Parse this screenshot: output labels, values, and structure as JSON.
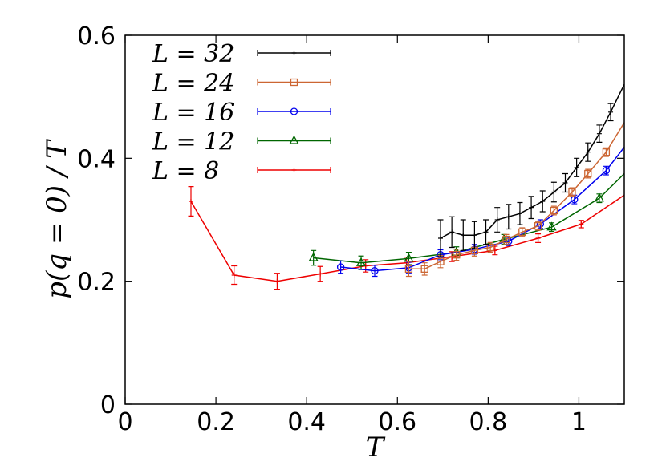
{
  "chart_data": {
    "type": "line",
    "xlabel": "T",
    "ylabel": "p(q = 0) / T",
    "xlim": [
      0,
      1.1
    ],
    "ylim": [
      0,
      0.6
    ],
    "xticks": [
      0,
      0.2,
      0.4,
      0.6,
      0.8,
      1
    ],
    "xtick_labels": [
      "0",
      "0.2",
      "0.4",
      "0.6",
      "0.8",
      "1"
    ],
    "yticks": [
      0,
      0.2,
      0.4,
      0.6
    ],
    "ytick_labels": [
      "0",
      "0.2",
      "0.4",
      "0.6"
    ],
    "legend_position": "top-left",
    "series": [
      {
        "name": "L = 32",
        "color": "#000000",
        "marker": "plus",
        "x": [
          0.695,
          0.72,
          0.745,
          0.77,
          0.795,
          0.82,
          0.845,
          0.87,
          0.895,
          0.92,
          0.945,
          0.97,
          0.995,
          1.02,
          1.045,
          1.07,
          1.1
        ],
        "y": [
          0.27,
          0.28,
          0.275,
          0.275,
          0.28,
          0.3,
          0.305,
          0.31,
          0.32,
          0.33,
          0.345,
          0.36,
          0.385,
          0.41,
          0.44,
          0.475,
          0.52
        ],
        "err": [
          0.03,
          0.025,
          0.025,
          0.022,
          0.02,
          0.02,
          0.02,
          0.018,
          0.018,
          0.017,
          0.016,
          0.015,
          0.015,
          0.015,
          0.014,
          0.014,
          0.014
        ]
      },
      {
        "name": "L = 24",
        "color": "#cc6633",
        "marker": "square",
        "x": [
          0.625,
          0.66,
          0.695,
          0.73,
          0.77,
          0.805,
          0.84,
          0.875,
          0.91,
          0.945,
          0.985,
          1.02,
          1.06,
          1.1
        ],
        "y": [
          0.22,
          0.22,
          0.232,
          0.243,
          0.25,
          0.255,
          0.268,
          0.28,
          0.29,
          0.315,
          0.345,
          0.375,
          0.41,
          0.458
        ],
        "err": [
          0.012,
          0.01,
          0.01,
          0.009,
          0.009,
          0.008,
          0.008,
          0.007,
          0.007,
          0.007,
          0.007,
          0.007,
          0.007,
          0.007
        ]
      },
      {
        "name": "L = 16",
        "color": "#0000ee",
        "marker": "circle",
        "x": [
          0.475,
          0.55,
          0.625,
          0.695,
          0.77,
          0.845,
          0.915,
          0.99,
          1.06,
          1.1
        ],
        "y": [
          0.223,
          0.217,
          0.222,
          0.243,
          0.252,
          0.265,
          0.293,
          0.333,
          0.38,
          0.418
        ],
        "err": [
          0.01,
          0.009,
          0.009,
          0.008,
          0.008,
          0.007,
          0.007,
          0.007,
          0.007,
          0.007
        ]
      },
      {
        "name": "L = 12",
        "color": "#006600",
        "marker": "triangle",
        "x": [
          0.415,
          0.52,
          0.625,
          0.73,
          0.835,
          0.94,
          1.045,
          1.1
        ],
        "y": [
          0.238,
          0.23,
          0.237,
          0.247,
          0.268,
          0.288,
          0.335,
          0.375
        ],
        "err": [
          0.012,
          0.011,
          0.01,
          0.009,
          0.008,
          0.007,
          0.007,
          0.007
        ]
      },
      {
        "name": "L = 8",
        "color": "#ee0000",
        "marker": "plus",
        "x": [
          0.145,
          0.24,
          0.335,
          0.43,
          0.53,
          0.62,
          0.72,
          0.815,
          0.91,
          1.005,
          1.1
        ],
        "y": [
          0.33,
          0.21,
          0.2,
          0.212,
          0.225,
          0.23,
          0.24,
          0.25,
          0.27,
          0.293,
          0.34
        ],
        "err": [
          0.024,
          0.015,
          0.013,
          0.012,
          0.01,
          0.009,
          0.008,
          0.007,
          0.007,
          0.006,
          0.006
        ]
      }
    ]
  }
}
